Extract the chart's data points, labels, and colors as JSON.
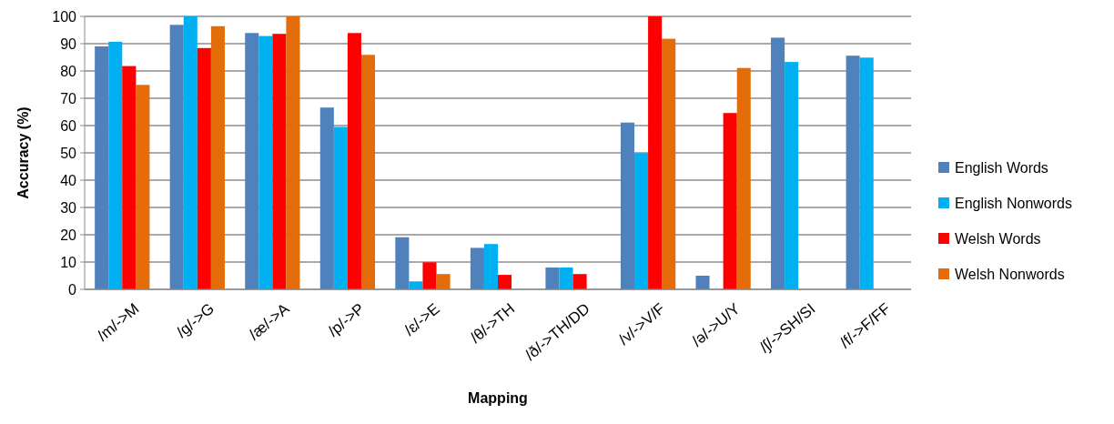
{
  "chart_data": {
    "type": "bar",
    "xlabel": "Mapping",
    "ylabel": "Accuracy (%)",
    "categories": [
      "/m/->M",
      "/g/->G",
      "/æ/->A",
      "/p/->P",
      "/ɛ/->E",
      "/θ/->TH",
      "/ð/->TH/DD",
      "/v/->V/F",
      "/ə/->U/Y",
      "/ʃ/->SH/SI",
      "/f/->F/FF"
    ],
    "series": [
      {
        "name": "English Words",
        "color": "#4f81bd",
        "values": [
          89.0,
          96.9,
          93.9,
          66.6,
          19.1,
          15.2,
          8.0,
          61.1,
          5.0,
          92.2,
          85.6
        ]
      },
      {
        "name": "English Nonwords",
        "color": "#00b0f0",
        "values": [
          90.7,
          100,
          92.8,
          59.5,
          2.9,
          16.6,
          8.0,
          49.9,
          null,
          83.3,
          84.9
        ]
      },
      {
        "name": "Welsh Words",
        "color": "#ff0000",
        "values": [
          81.8,
          88.4,
          93.6,
          93.9,
          9.9,
          5.3,
          5.6,
          100,
          64.6,
          null,
          null
        ]
      },
      {
        "name": "Welsh Nonwords",
        "color": "#e46c0a",
        "values": [
          74.9,
          96.4,
          100,
          85.9,
          5.6,
          null,
          null,
          91.8,
          81.1,
          null,
          null
        ]
      }
    ],
    "ylim": [
      0,
      100
    ],
    "yticks": [
      0,
      10,
      20,
      30,
      40,
      50,
      60,
      70,
      80,
      90,
      100
    ],
    "grid": "y",
    "legend": "right"
  }
}
